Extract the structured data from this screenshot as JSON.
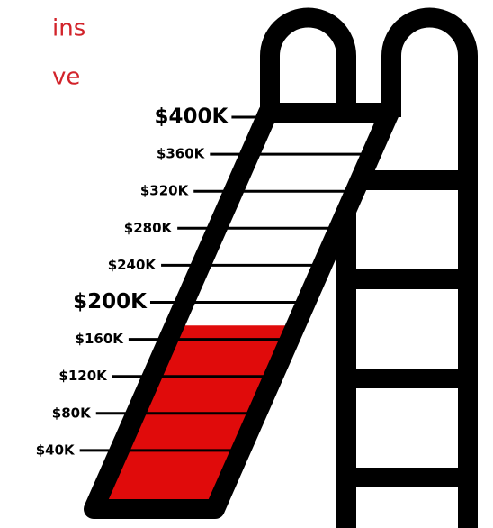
{
  "chart_data": {
    "type": "slide-progress",
    "title_lines": [
      "ins",
      "ve"
    ],
    "value": 175000,
    "color": "#e00b0b",
    "ylim": [
      0,
      400000
    ],
    "yticks": [
      {
        "value": 40000,
        "label": "$40K"
      },
      {
        "value": 80000,
        "label": "$80K"
      },
      {
        "value": 120000,
        "label": "$120K"
      },
      {
        "value": 160000,
        "label": "$160K"
      },
      {
        "value": 200000,
        "label": "$200K"
      },
      {
        "value": 240000,
        "label": "$240K"
      },
      {
        "value": 280000,
        "label": "$280K"
      },
      {
        "value": 320000,
        "label": "$320K"
      },
      {
        "value": 360000,
        "label": "$360K"
      },
      {
        "value": 400000,
        "label": "$400K"
      }
    ],
    "major_tick_step": 200000
  }
}
